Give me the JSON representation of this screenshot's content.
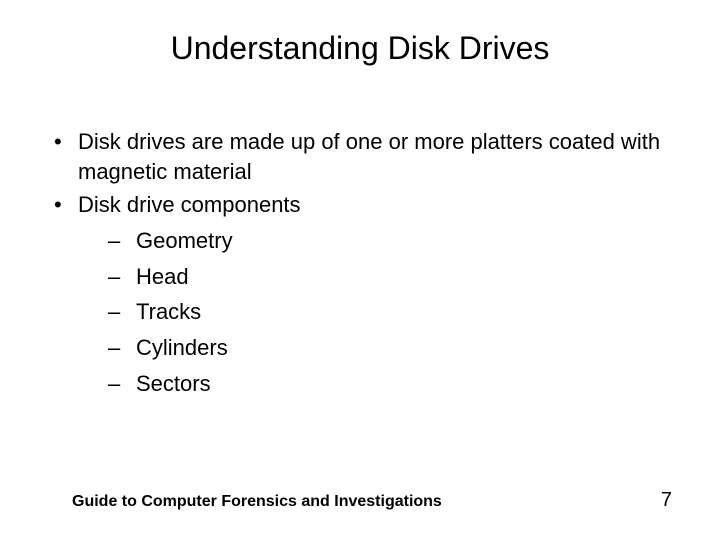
{
  "title": "Understanding Disk Drives",
  "bullets": [
    {
      "text": "Disk drives are made up of one or more platters coated with magnetic material"
    },
    {
      "text": "Disk drive components",
      "children": [
        {
          "text": "Geometry"
        },
        {
          "text": "Head"
        },
        {
          "text": "Tracks"
        },
        {
          "text": "Cylinders"
        },
        {
          "text": "Sectors"
        }
      ]
    }
  ],
  "footer": {
    "text": "Guide to Computer Forensics and Investigations",
    "page": "7"
  },
  "style": {
    "background_color": "#ffffff",
    "text_color": "#000000",
    "title_fontsize": 32,
    "body_fontsize": 22,
    "footer_fontsize": 16,
    "page_fontsize": 20,
    "font_family": "Arial"
  }
}
